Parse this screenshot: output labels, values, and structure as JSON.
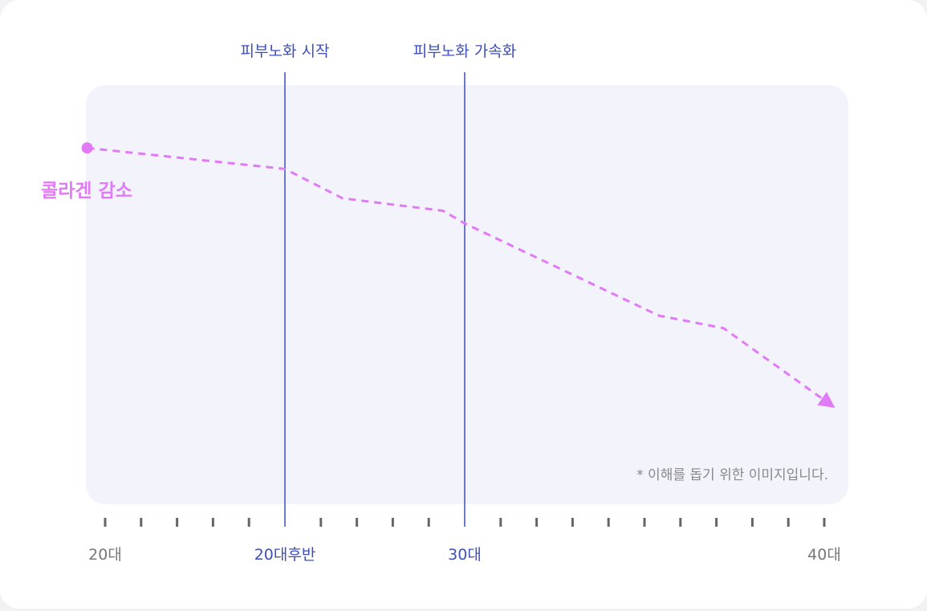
{
  "chart_data": {
    "type": "line",
    "title": "",
    "series": [
      {
        "name": "콜라겐 감소",
        "x": [
          19.5,
          25,
          26.6,
          29.4,
          30,
          35.4,
          37.2,
          40.3
        ],
        "y": [
          85,
          80,
          73,
          70,
          67,
          45,
          42,
          23
        ]
      }
    ],
    "xlim": [
      19,
      40.5
    ],
    "ylim": [
      0,
      100
    ],
    "x_ticks_count": 21,
    "x_tick_labels": [
      {
        "value": 20,
        "label": "20대",
        "highlight": false
      },
      {
        "value": 25,
        "label": "20대후반",
        "highlight": true
      },
      {
        "value": 30,
        "label": "30대",
        "highlight": true
      },
      {
        "value": 40,
        "label": "40대",
        "highlight": false
      }
    ],
    "markers": [
      {
        "value": 25,
        "label": "피부노화 시작"
      },
      {
        "value": 30,
        "label": "피부노화 가속화"
      }
    ],
    "note": "* 이해를 돕기 위한 이미지입니다.",
    "line_style": "dashed",
    "grid": false,
    "colors": {
      "series": "#e07bf5",
      "marker": "#3d4fb8",
      "plot_bg": "#f3f3fc",
      "tick": "#666666",
      "label": "#777777",
      "note": "#888888"
    }
  }
}
